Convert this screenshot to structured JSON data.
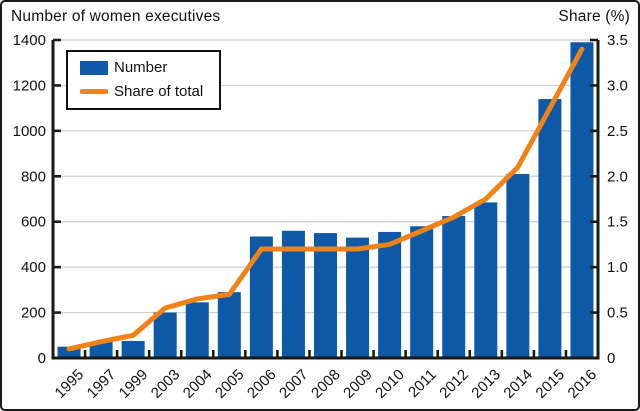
{
  "window": {
    "background": "#ffffff",
    "border_color": "#1a1a1a"
  },
  "header": {
    "left_title": "Number of women executives",
    "right_title": "Share (%)"
  },
  "legend": {
    "items": [
      {
        "label": "Number",
        "swatch": "bar",
        "color": "#0e58a8"
      },
      {
        "label": "Share of total",
        "swatch": "line",
        "color": "#f08218"
      }
    ]
  },
  "chart_data": {
    "type": "bar+line",
    "title": "Number of women executives",
    "categories": [
      "1995",
      "1997",
      "1999",
      "2003",
      "2004",
      "2005",
      "2006",
      "2007",
      "2008",
      "2009",
      "2010",
      "2011",
      "2012",
      "2013",
      "2014",
      "2015",
      "2016"
    ],
    "series": [
      {
        "name": "Number",
        "type": "bar",
        "axis": "left",
        "color": "#0e58a8",
        "values": [
          50,
          70,
          75,
          200,
          245,
          290,
          535,
          560,
          550,
          530,
          555,
          580,
          625,
          685,
          810,
          1140,
          1390
        ]
      },
      {
        "name": "Share of total",
        "type": "line",
        "axis": "right",
        "color": "#f08218",
        "values": [
          0.1,
          0.18,
          0.25,
          0.55,
          0.65,
          0.7,
          1.2,
          1.2,
          1.2,
          1.2,
          1.25,
          1.4,
          1.55,
          1.75,
          2.1,
          2.75,
          3.4
        ]
      }
    ],
    "left_axis": {
      "title": "Number of women executives",
      "min": 0,
      "max": 1400,
      "tick_step": 200,
      "tick_labels": [
        "0",
        "200",
        "400",
        "600",
        "800",
        "1000",
        "1200",
        "1400"
      ]
    },
    "right_axis": {
      "title": "Share (%)",
      "min": 0,
      "max": 3.5,
      "tick_step": 0.5,
      "tick_labels": [
        "0",
        "0.5",
        "1.0",
        "1.5",
        "2.0",
        "2.5",
        "3.0",
        "3.5"
      ]
    },
    "grid": true,
    "gridline_color": "#cfcfcf",
    "axis_color": "#1a1a1a",
    "legend_position": "top-left-inside"
  }
}
